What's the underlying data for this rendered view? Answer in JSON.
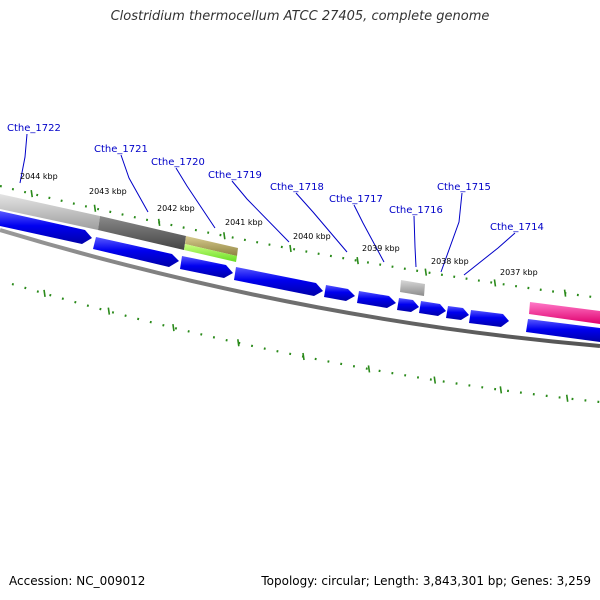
{
  "title": "Clostridium thermocellum ATCC 27405, complete genome",
  "footer": {
    "accession": "Accession: NC_009012",
    "stats": "Topology: circular; Length: 3,843,301 bp; Genes: 3,259"
  },
  "colors": {
    "label": "#0000c8",
    "cds": "#0000ee",
    "tick": "#2a8a1a",
    "backbone": "#777777"
  },
  "scale_labels": [
    "2044 kbp",
    "2043 kbp",
    "2042 kbp",
    "2041 kbp",
    "2040 kbp",
    "2039 kbp",
    "2038 kbp",
    "2037 kbp"
  ],
  "gene_labels": [
    "Cthe_1722",
    "Cthe_1721",
    "Cthe_1720",
    "Cthe_1719",
    "Cthe_1718",
    "Cthe_1717",
    "Cthe_1716",
    "Cthe_1715",
    "Cthe_1714"
  ]
}
